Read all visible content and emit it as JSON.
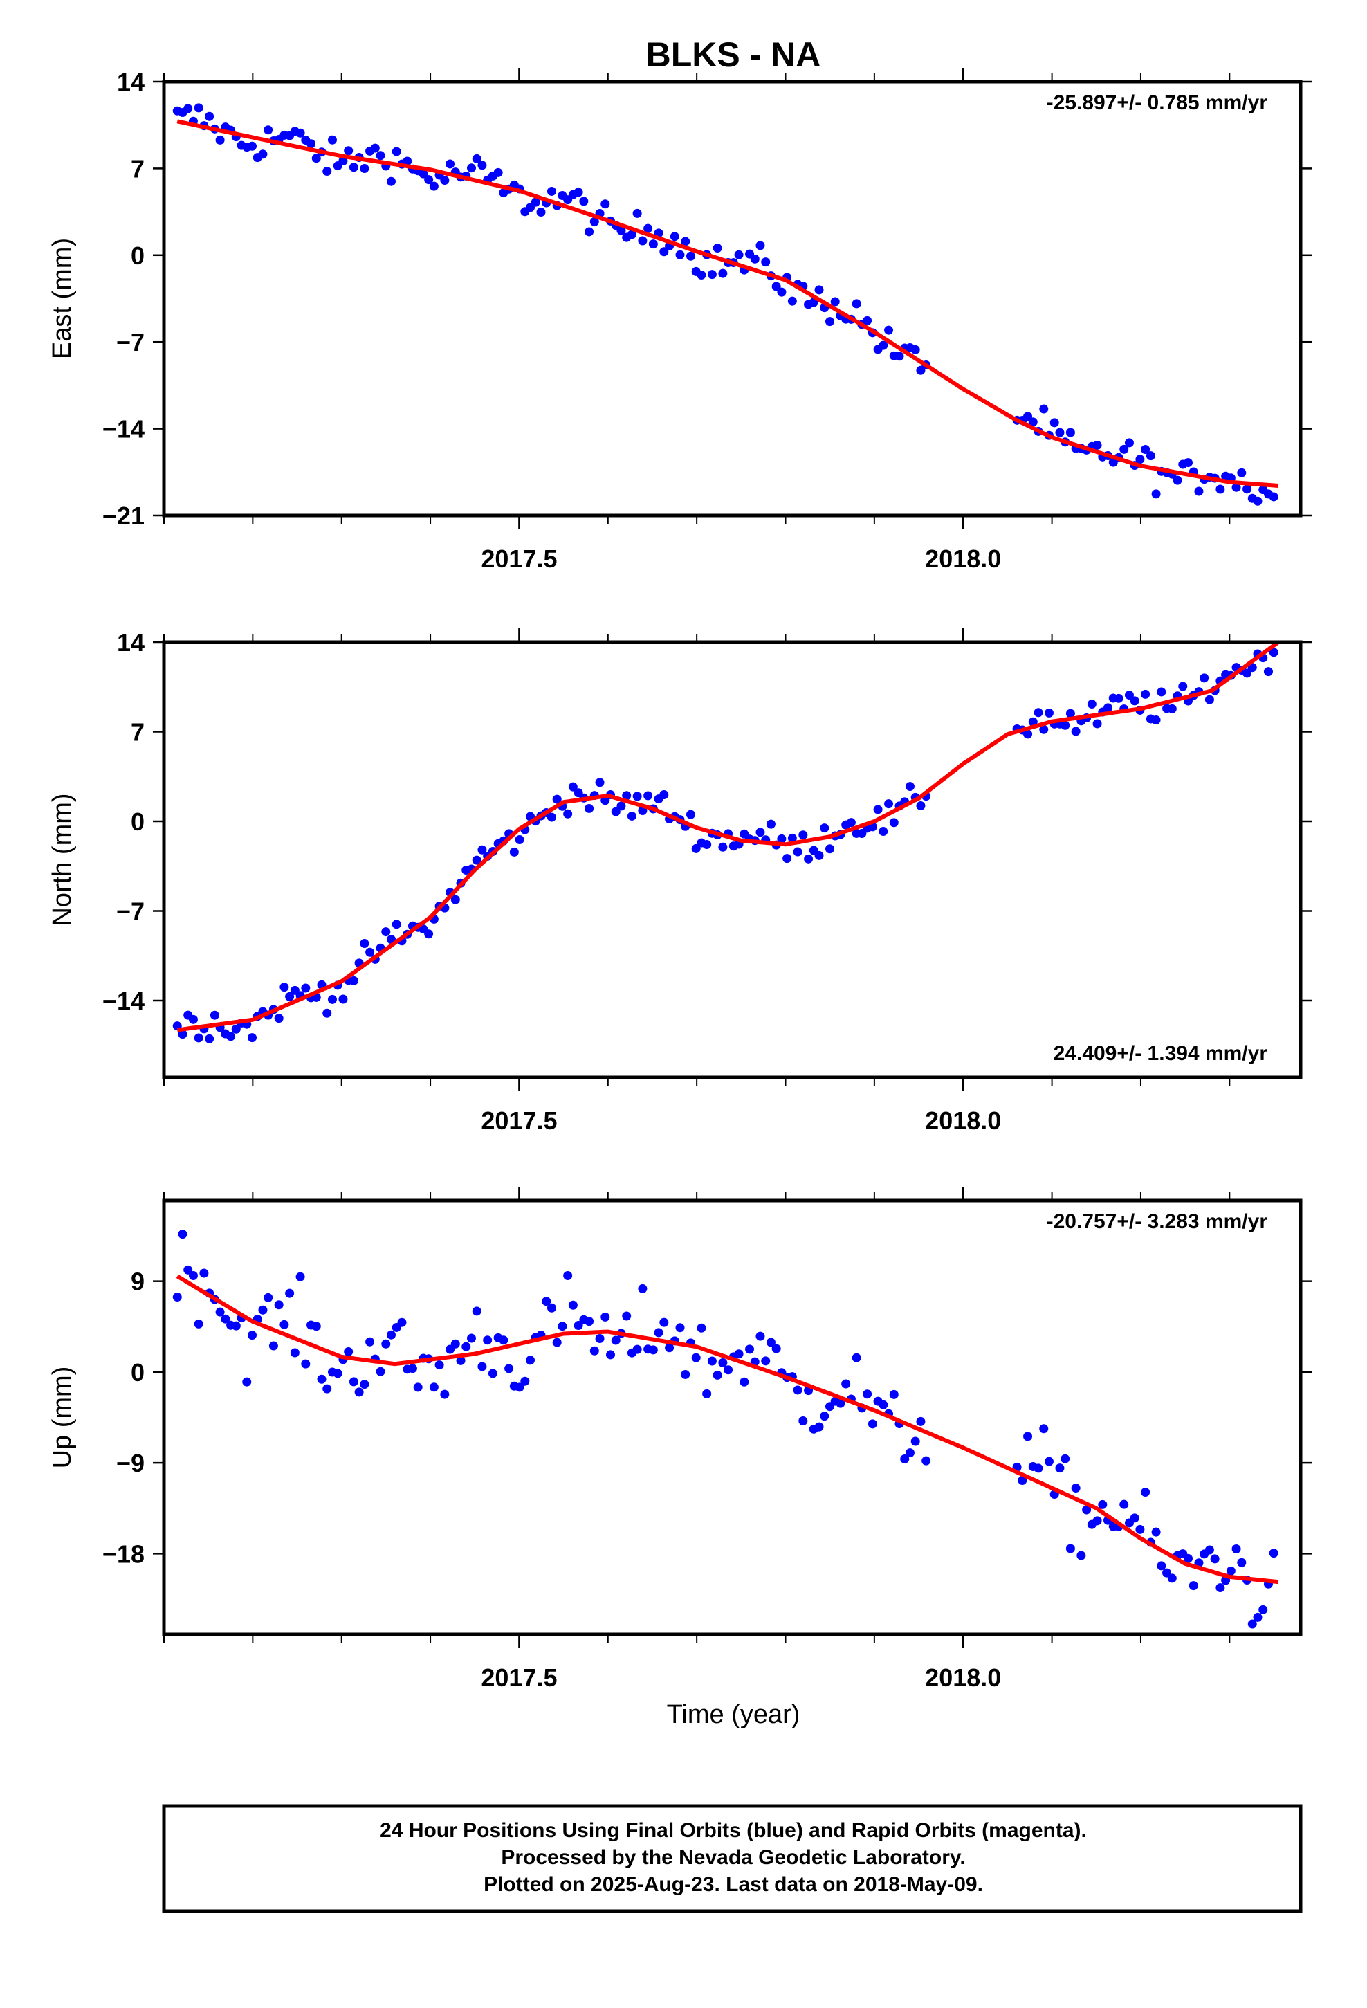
{
  "title": "BLKS - NA",
  "xlabel": "Time (year)",
  "footer": {
    "line1": "24 Hour Positions Using Final Orbits (blue) and Rapid Orbits (magenta).",
    "line2": "Processed by the Nevada Geodetic Laboratory.",
    "line3": "Plotted on 2025-Aug-23. Last data on 2018-May-09."
  },
  "colors": {
    "points": "#0000ff",
    "fit": "#ff0000",
    "axes": "#000000"
  },
  "chart_data": [
    {
      "type": "scatter",
      "ylabel": "East (mm)",
      "rate": "-25.897+/- 0.785 mm/yr",
      "rate_position": "top-right",
      "xlim": [
        2017.1,
        2018.38
      ],
      "ylim": [
        -21,
        14
      ],
      "yticks": [
        14,
        7,
        0,
        -7,
        -14,
        -21
      ],
      "xticks": [
        2017.5,
        2018.0
      ],
      "gaps": [
        [
          2017.96,
          2018.06
        ]
      ],
      "trend": [
        [
          2017.115,
          10.8
        ],
        [
          2017.2,
          9.5
        ],
        [
          2017.3,
          8.0
        ],
        [
          2017.4,
          6.9
        ],
        [
          2017.5,
          5.2
        ],
        [
          2017.6,
          2.8
        ],
        [
          2017.7,
          0.3
        ],
        [
          2017.8,
          -2.0
        ],
        [
          2017.9,
          -6.2
        ],
        [
          2018.0,
          -10.8
        ],
        [
          2018.06,
          -13.3
        ],
        [
          2018.1,
          -14.7
        ],
        [
          2018.2,
          -17.0
        ],
        [
          2018.3,
          -18.3
        ],
        [
          2018.355,
          -18.6
        ]
      ],
      "trend_color": "#ff0000",
      "scatter_amplitude": 1.4
    },
    {
      "type": "scatter",
      "ylabel": "North (mm)",
      "rate": "24.409+/- 1.394 mm/yr",
      "rate_position": "bottom-right",
      "xlim": [
        2017.1,
        2018.38
      ],
      "ylim": [
        -20,
        14
      ],
      "yticks": [
        14,
        7,
        0,
        -7,
        -14
      ],
      "xticks": [
        2017.5,
        2018.0
      ],
      "gaps": [
        [
          2017.96,
          2018.06
        ]
      ],
      "trend": [
        [
          2017.115,
          -16.3
        ],
        [
          2017.2,
          -15.5
        ],
        [
          2017.3,
          -12.5
        ],
        [
          2017.4,
          -7.5
        ],
        [
          2017.45,
          -3.8
        ],
        [
          2017.5,
          -0.6
        ],
        [
          2017.55,
          1.5
        ],
        [
          2017.6,
          2.0
        ],
        [
          2017.65,
          1.0
        ],
        [
          2017.7,
          -0.5
        ],
        [
          2017.75,
          -1.5
        ],
        [
          2017.8,
          -1.8
        ],
        [
          2017.85,
          -1.2
        ],
        [
          2017.9,
          0.0
        ],
        [
          2017.95,
          1.8
        ],
        [
          2018.0,
          4.5
        ],
        [
          2018.05,
          6.8
        ],
        [
          2018.1,
          7.8
        ],
        [
          2018.2,
          8.8
        ],
        [
          2018.28,
          10.2
        ],
        [
          2018.355,
          14.0
        ]
      ],
      "trend_color": "#ff0000",
      "scatter_amplitude": 1.2
    },
    {
      "type": "scatter",
      "ylabel": "Up (mm)",
      "rate": "-20.757+/- 3.283 mm/yr",
      "rate_position": "top-right",
      "xlim": [
        2017.1,
        2018.38
      ],
      "ylim": [
        -26,
        17
      ],
      "yticks": [
        9,
        0,
        -9,
        -18
      ],
      "xticks": [
        2017.5,
        2018.0
      ],
      "gaps": [
        [
          2017.96,
          2018.06
        ]
      ],
      "trend": [
        [
          2017.115,
          9.5
        ],
        [
          2017.2,
          5.0
        ],
        [
          2017.3,
          1.5
        ],
        [
          2017.36,
          0.8
        ],
        [
          2017.45,
          1.8
        ],
        [
          2017.55,
          3.8
        ],
        [
          2017.6,
          4.0
        ],
        [
          2017.7,
          2.5
        ],
        [
          2017.8,
          -0.5
        ],
        [
          2017.9,
          -3.8
        ],
        [
          2018.0,
          -7.5
        ],
        [
          2018.1,
          -11.5
        ],
        [
          2018.15,
          -13.5
        ],
        [
          2018.2,
          -16.5
        ],
        [
          2018.25,
          -19.0
        ],
        [
          2018.3,
          -20.3
        ],
        [
          2018.355,
          -20.8
        ]
      ],
      "trend_color": "#ff0000",
      "scatter_amplitude": 3.8
    }
  ]
}
